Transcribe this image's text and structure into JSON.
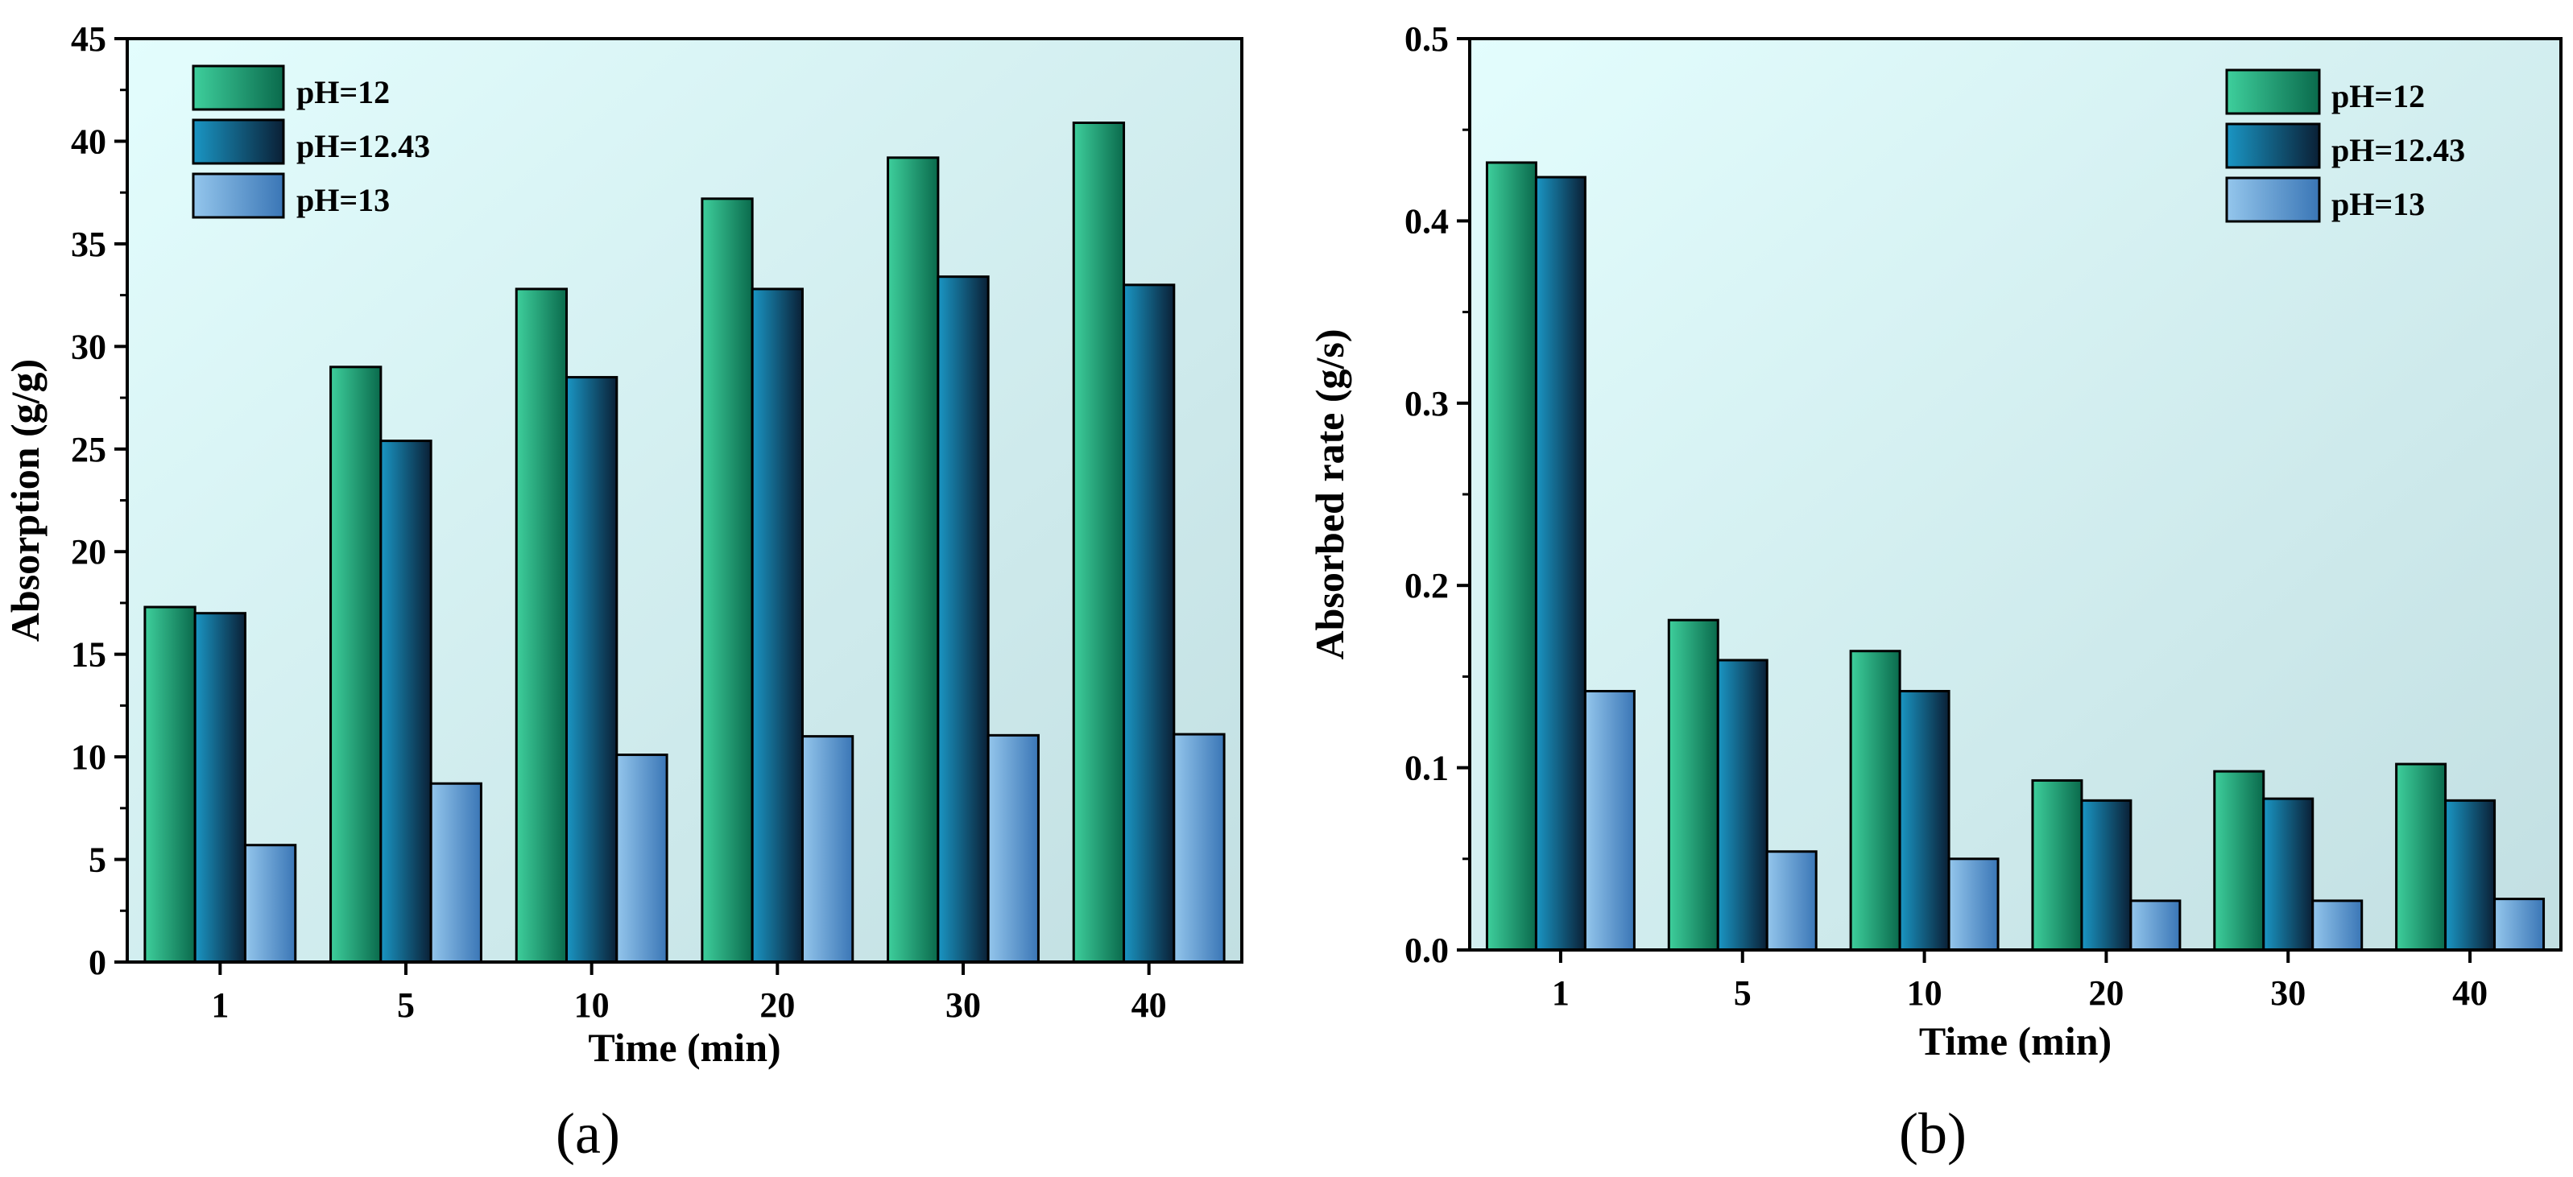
{
  "colors": {
    "plot_bg_light": "#e3fdfd",
    "plot_bg_dark": "#c2dfe2",
    "series_light": [
      "#3ecf9c",
      "#1a96c4",
      "#94c6ec"
    ],
    "series_dark": [
      "#0a6a4c",
      "#0a2036",
      "#3a76b6"
    ],
    "axis": "#000000"
  },
  "chart_data": [
    {
      "type": "bar",
      "panel": "(a)",
      "xlabel": "Time (min)",
      "ylabel": "Absorption (g/g)",
      "ylim": [
        0,
        45
      ],
      "yticks": [
        "0",
        "5",
        "10",
        "15",
        "20",
        "25",
        "30",
        "35",
        "40",
        "45"
      ],
      "categories": [
        "1",
        "5",
        "10",
        "20",
        "30",
        "40"
      ],
      "legend_position": "top-left",
      "series": [
        {
          "name": "pH=12",
          "values": [
            17.3,
            29.0,
            32.8,
            37.2,
            39.2,
            40.9
          ]
        },
        {
          "name": "pH=12.43",
          "values": [
            17.0,
            25.4,
            28.5,
            32.8,
            33.4,
            33.0
          ]
        },
        {
          "name": "pH=13",
          "values": [
            5.7,
            8.7,
            10.1,
            11.0,
            11.05,
            11.1
          ]
        }
      ]
    },
    {
      "type": "bar",
      "panel": "(b)",
      "xlabel": "Time (min)",
      "ylabel": "Absorbed rate (g/s)",
      "ylim": [
        0,
        0.5
      ],
      "yticks": [
        "0.0",
        "0.1",
        "0.2",
        "0.3",
        "0.4",
        "0.5"
      ],
      "categories": [
        "1",
        "5",
        "10",
        "20",
        "30",
        "40"
      ],
      "legend_position": "top-right",
      "series": [
        {
          "name": "pH=12",
          "values": [
            0.432,
            0.181,
            0.164,
            0.093,
            0.098,
            0.102
          ]
        },
        {
          "name": "pH=12.43",
          "values": [
            0.424,
            0.159,
            0.142,
            0.082,
            0.083,
            0.082
          ]
        },
        {
          "name": "pH=13",
          "values": [
            0.142,
            0.054,
            0.05,
            0.027,
            0.027,
            0.028
          ]
        }
      ]
    }
  ]
}
